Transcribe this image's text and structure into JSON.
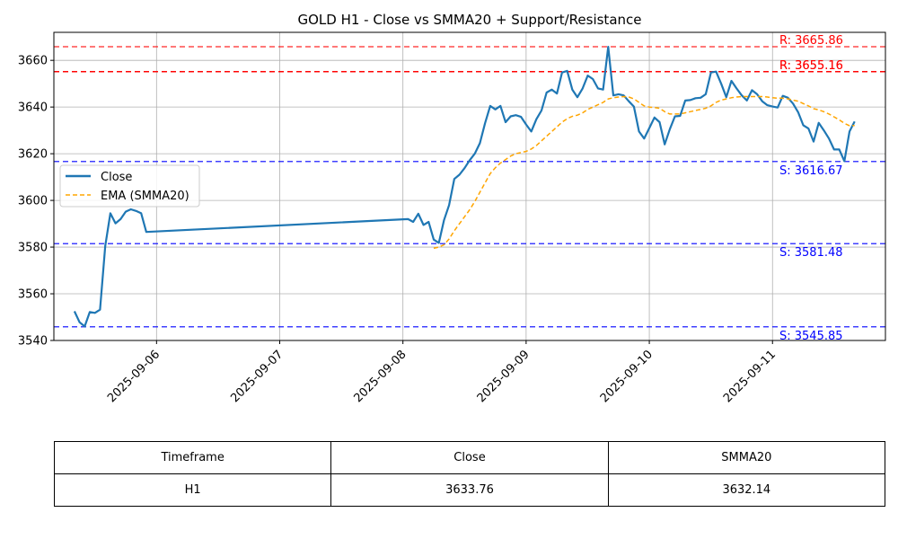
{
  "chart_data": {
    "type": "line",
    "title": "GOLD H1 - Close vs SMMA20 + Support/Resistance",
    "xlabel": "",
    "ylabel": "",
    "xlim": [
      "2025-09-05 04:00",
      "2025-09-11 22:00"
    ],
    "ylim": [
      3540,
      3672
    ],
    "x_ticks": [
      "2025-09-06",
      "2025-09-07",
      "2025-09-08",
      "2025-09-09",
      "2025-09-10",
      "2025-09-11"
    ],
    "y_ticks": [
      3540,
      3560,
      3580,
      3600,
      3620,
      3640,
      3660
    ],
    "grid": true,
    "legend_position": "center-left",
    "series": [
      {
        "name": "Close",
        "color": "#1f77b4",
        "style": "solid",
        "points": [
          [
            "2025-09-05 08:00",
            3552.5
          ],
          [
            "2025-09-05 09:00",
            3547.8
          ],
          [
            "2025-09-05 10:00",
            3546.0
          ],
          [
            "2025-09-05 11:00",
            3552.2
          ],
          [
            "2025-09-05 12:00",
            3551.8
          ],
          [
            "2025-09-05 13:00",
            3553.2
          ],
          [
            "2025-09-05 14:00",
            3580.5
          ],
          [
            "2025-09-05 15:00",
            3594.5
          ],
          [
            "2025-09-05 16:00",
            3590.2
          ],
          [
            "2025-09-05 17:00",
            3592.0
          ],
          [
            "2025-09-05 18:00",
            3595.2
          ],
          [
            "2025-09-05 19:00",
            3596.2
          ],
          [
            "2025-09-05 20:00",
            3595.5
          ],
          [
            "2025-09-05 21:00",
            3594.5
          ],
          [
            "2025-09-05 22:00",
            3586.5
          ],
          [
            "2025-09-08 01:00",
            3592.0
          ],
          [
            "2025-09-08 02:00",
            3590.8
          ],
          [
            "2025-09-08 03:00",
            3594.3
          ],
          [
            "2025-09-08 04:00",
            3589.5
          ],
          [
            "2025-09-08 05:00",
            3590.8
          ],
          [
            "2025-09-08 06:00",
            3583.2
          ],
          [
            "2025-09-08 07:00",
            3581.8
          ],
          [
            "2025-09-08 08:00",
            3591.5
          ],
          [
            "2025-09-08 09:00",
            3598.0
          ],
          [
            "2025-09-08 10:00",
            3609.2
          ],
          [
            "2025-09-08 11:00",
            3611.0
          ],
          [
            "2025-09-08 12:00",
            3613.8
          ],
          [
            "2025-09-08 13:00",
            3617.2
          ],
          [
            "2025-09-08 14:00",
            3620.0
          ],
          [
            "2025-09-08 15:00",
            3624.5
          ],
          [
            "2025-09-08 16:00",
            3633.0
          ],
          [
            "2025-09-08 17:00",
            3640.5
          ],
          [
            "2025-09-08 18:00",
            3639.0
          ],
          [
            "2025-09-08 19:00",
            3640.5
          ],
          [
            "2025-09-08 20:00",
            3633.5
          ],
          [
            "2025-09-08 21:00",
            3636.0
          ],
          [
            "2025-09-08 22:00",
            3636.5
          ],
          [
            "2025-09-08 23:00",
            3635.8
          ],
          [
            "2025-09-09 00:00",
            3632.5
          ],
          [
            "2025-09-09 01:00",
            3629.5
          ],
          [
            "2025-09-09 02:00",
            3634.8
          ],
          [
            "2025-09-09 03:00",
            3638.5
          ],
          [
            "2025-09-09 04:00",
            3646.2
          ],
          [
            "2025-09-09 05:00",
            3647.5
          ],
          [
            "2025-09-09 06:00",
            3645.8
          ],
          [
            "2025-09-09 07:00",
            3654.8
          ],
          [
            "2025-09-09 08:00",
            3655.5
          ],
          [
            "2025-09-09 09:00",
            3647.5
          ],
          [
            "2025-09-09 10:00",
            3644.2
          ],
          [
            "2025-09-09 11:00",
            3648.0
          ],
          [
            "2025-09-09 12:00",
            3653.5
          ],
          [
            "2025-09-09 13:00",
            3652.0
          ],
          [
            "2025-09-09 14:00",
            3648.0
          ],
          [
            "2025-09-09 15:00",
            3647.5
          ],
          [
            "2025-09-09 16:00",
            3665.8
          ],
          [
            "2025-09-09 17:00",
            3645.0
          ],
          [
            "2025-09-09 18:00",
            3645.5
          ],
          [
            "2025-09-09 19:00",
            3645.0
          ],
          [
            "2025-09-09 20:00",
            3642.5
          ],
          [
            "2025-09-09 21:00",
            3640.2
          ],
          [
            "2025-09-09 22:00",
            3629.5
          ],
          [
            "2025-09-09 23:00",
            3626.5
          ],
          [
            "2025-09-10 00:00",
            3631.0
          ],
          [
            "2025-09-10 01:00",
            3635.5
          ],
          [
            "2025-09-10 02:00",
            3633.5
          ],
          [
            "2025-09-10 03:00",
            3624.0
          ],
          [
            "2025-09-10 04:00",
            3630.5
          ],
          [
            "2025-09-10 05:00",
            3636.0
          ],
          [
            "2025-09-10 06:00",
            3636.2
          ],
          [
            "2025-09-10 07:00",
            3642.8
          ],
          [
            "2025-09-10 08:00",
            3643.0
          ],
          [
            "2025-09-10 09:00",
            3643.8
          ],
          [
            "2025-09-10 10:00",
            3644.0
          ],
          [
            "2025-09-10 11:00",
            3645.5
          ],
          [
            "2025-09-10 12:00",
            3654.8
          ],
          [
            "2025-09-10 13:00",
            3655.2
          ],
          [
            "2025-09-10 14:00",
            3650.0
          ],
          [
            "2025-09-10 15:00",
            3644.2
          ],
          [
            "2025-09-10 16:00",
            3651.2
          ],
          [
            "2025-09-10 17:00",
            3648.0
          ],
          [
            "2025-09-10 18:00",
            3645.0
          ],
          [
            "2025-09-10 19:00",
            3642.8
          ],
          [
            "2025-09-10 20:00",
            3647.2
          ],
          [
            "2025-09-10 21:00",
            3645.5
          ],
          [
            "2025-09-10 22:00",
            3642.5
          ],
          [
            "2025-09-10 23:00",
            3640.8
          ],
          [
            "2025-09-11 00:00",
            3640.2
          ],
          [
            "2025-09-11 01:00",
            3639.8
          ],
          [
            "2025-09-11 02:00",
            3644.8
          ],
          [
            "2025-09-11 03:00",
            3644.0
          ],
          [
            "2025-09-11 04:00",
            3641.5
          ],
          [
            "2025-09-11 05:00",
            3637.8
          ],
          [
            "2025-09-11 06:00",
            3632.2
          ],
          [
            "2025-09-11 07:00",
            3630.8
          ],
          [
            "2025-09-11 08:00",
            3625.2
          ],
          [
            "2025-09-11 09:00",
            3633.2
          ],
          [
            "2025-09-11 10:00",
            3630.0
          ],
          [
            "2025-09-11 11:00",
            3626.5
          ],
          [
            "2025-09-11 12:00",
            3621.8
          ],
          [
            "2025-09-11 13:00",
            3621.8
          ],
          [
            "2025-09-11 14:00",
            3616.8
          ],
          [
            "2025-09-11 15:00",
            3629.5
          ],
          [
            "2025-09-11 16:00",
            3633.8
          ]
        ]
      },
      {
        "name": "EMA (SMMA20)",
        "color": "#ffa500",
        "style": "dashed",
        "points": [
          [
            "2025-09-08 06:00",
            3579.5
          ],
          [
            "2025-09-08 07:00",
            3580.0
          ],
          [
            "2025-09-08 08:00",
            3581.0
          ],
          [
            "2025-09-08 09:00",
            3583.5
          ],
          [
            "2025-09-08 10:00",
            3587.0
          ],
          [
            "2025-09-08 11:00",
            3590.0
          ],
          [
            "2025-09-08 12:00",
            3593.0
          ],
          [
            "2025-09-08 13:00",
            3596.0
          ],
          [
            "2025-09-08 14:00",
            3599.5
          ],
          [
            "2025-09-08 15:00",
            3603.5
          ],
          [
            "2025-09-08 16:00",
            3607.5
          ],
          [
            "2025-09-08 17:00",
            3611.5
          ],
          [
            "2025-09-08 18:00",
            3614.0
          ],
          [
            "2025-09-08 19:00",
            3616.0
          ],
          [
            "2025-09-08 20:00",
            3617.5
          ],
          [
            "2025-09-08 21:00",
            3619.0
          ],
          [
            "2025-09-08 22:00",
            3620.0
          ],
          [
            "2025-09-08 23:00",
            3620.5
          ],
          [
            "2025-09-09 00:00",
            3621.0
          ],
          [
            "2025-09-09 01:00",
            3622.0
          ],
          [
            "2025-09-09 02:00",
            3623.5
          ],
          [
            "2025-09-09 03:00",
            3625.5
          ],
          [
            "2025-09-09 04:00",
            3627.5
          ],
          [
            "2025-09-09 05:00",
            3629.5
          ],
          [
            "2025-09-09 06:00",
            3631.5
          ],
          [
            "2025-09-09 07:00",
            3633.5
          ],
          [
            "2025-09-09 08:00",
            3635.0
          ],
          [
            "2025-09-09 09:00",
            3636.0
          ],
          [
            "2025-09-09 10:00",
            3636.5
          ],
          [
            "2025-09-09 11:00",
            3637.5
          ],
          [
            "2025-09-09 12:00",
            3639.0
          ],
          [
            "2025-09-09 13:00",
            3640.0
          ],
          [
            "2025-09-09 14:00",
            3641.0
          ],
          [
            "2025-09-09 15:00",
            3642.0
          ],
          [
            "2025-09-09 16:00",
            3643.5
          ],
          [
            "2025-09-09 17:00",
            3644.0
          ],
          [
            "2025-09-09 18:00",
            3644.3
          ],
          [
            "2025-09-09 19:00",
            3644.5
          ],
          [
            "2025-09-09 20:00",
            3644.3
          ],
          [
            "2025-09-09 21:00",
            3643.5
          ],
          [
            "2025-09-09 22:00",
            3642.0
          ],
          [
            "2025-09-09 23:00",
            3640.5
          ],
          [
            "2025-09-10 00:00",
            3640.0
          ],
          [
            "2025-09-10 01:00",
            3639.8
          ],
          [
            "2025-09-10 02:00",
            3639.5
          ],
          [
            "2025-09-10 03:00",
            3638.0
          ],
          [
            "2025-09-10 04:00",
            3637.0
          ],
          [
            "2025-09-10 05:00",
            3637.0
          ],
          [
            "2025-09-10 06:00",
            3637.0
          ],
          [
            "2025-09-10 07:00",
            3637.5
          ],
          [
            "2025-09-10 08:00",
            3638.0
          ],
          [
            "2025-09-10 09:00",
            3638.5
          ],
          [
            "2025-09-10 10:00",
            3639.0
          ],
          [
            "2025-09-10 11:00",
            3639.5
          ],
          [
            "2025-09-10 12:00",
            3640.5
          ],
          [
            "2025-09-10 13:00",
            3642.0
          ],
          [
            "2025-09-10 14:00",
            3643.0
          ],
          [
            "2025-09-10 15:00",
            3643.5
          ],
          [
            "2025-09-10 16:00",
            3644.0
          ],
          [
            "2025-09-10 17:00",
            3644.3
          ],
          [
            "2025-09-10 18:00",
            3644.5
          ],
          [
            "2025-09-10 19:00",
            3644.5
          ],
          [
            "2025-09-10 20:00",
            3644.5
          ],
          [
            "2025-09-10 21:00",
            3644.5
          ],
          [
            "2025-09-10 22:00",
            3644.5
          ],
          [
            "2025-09-10 23:00",
            3644.3
          ],
          [
            "2025-09-11 00:00",
            3644.0
          ],
          [
            "2025-09-11 01:00",
            3643.8
          ],
          [
            "2025-09-11 02:00",
            3643.8
          ],
          [
            "2025-09-11 03:00",
            3643.5
          ],
          [
            "2025-09-11 04:00",
            3643.0
          ],
          [
            "2025-09-11 05:00",
            3642.5
          ],
          [
            "2025-09-11 06:00",
            3641.5
          ],
          [
            "2025-09-11 07:00",
            3640.5
          ],
          [
            "2025-09-11 08:00",
            3639.3
          ],
          [
            "2025-09-11 09:00",
            3638.8
          ],
          [
            "2025-09-11 10:00",
            3638.0
          ],
          [
            "2025-09-11 11:00",
            3637.0
          ],
          [
            "2025-09-11 12:00",
            3635.8
          ],
          [
            "2025-09-11 13:00",
            3634.5
          ],
          [
            "2025-09-11 14:00",
            3633.0
          ],
          [
            "2025-09-11 15:00",
            3632.0
          ],
          [
            "2025-09-11 16:00",
            3632.1
          ]
        ]
      }
    ],
    "levels": [
      {
        "kind": "resistance",
        "value": 3665.86,
        "label": "R: 3665.86",
        "color": "#ff0000",
        "opacity": 0.7
      },
      {
        "kind": "resistance",
        "value": 3655.16,
        "label": "R: 3655.16",
        "color": "#ff0000",
        "opacity": 0.85
      },
      {
        "kind": "resistance",
        "value": 3655.16,
        "label": "R: 3655.16",
        "color": "#ff0000",
        "opacity": 0.85
      },
      {
        "kind": "support",
        "value": 3616.67,
        "label": "S: 3616.67",
        "color": "#0000ff",
        "opacity": 0.75
      },
      {
        "kind": "support",
        "value": 3581.48,
        "label": "S: 3581.48",
        "color": "#0000ff",
        "opacity": 0.75
      },
      {
        "kind": "support",
        "value": 3545.85,
        "label": "S: 3545.85",
        "color": "#0000ff",
        "opacity": 0.75
      }
    ]
  },
  "table": {
    "headers": [
      "Timeframe",
      "Close",
      "SMMA20"
    ],
    "rows": [
      [
        "H1",
        "3633.76",
        "3632.14"
      ]
    ]
  }
}
